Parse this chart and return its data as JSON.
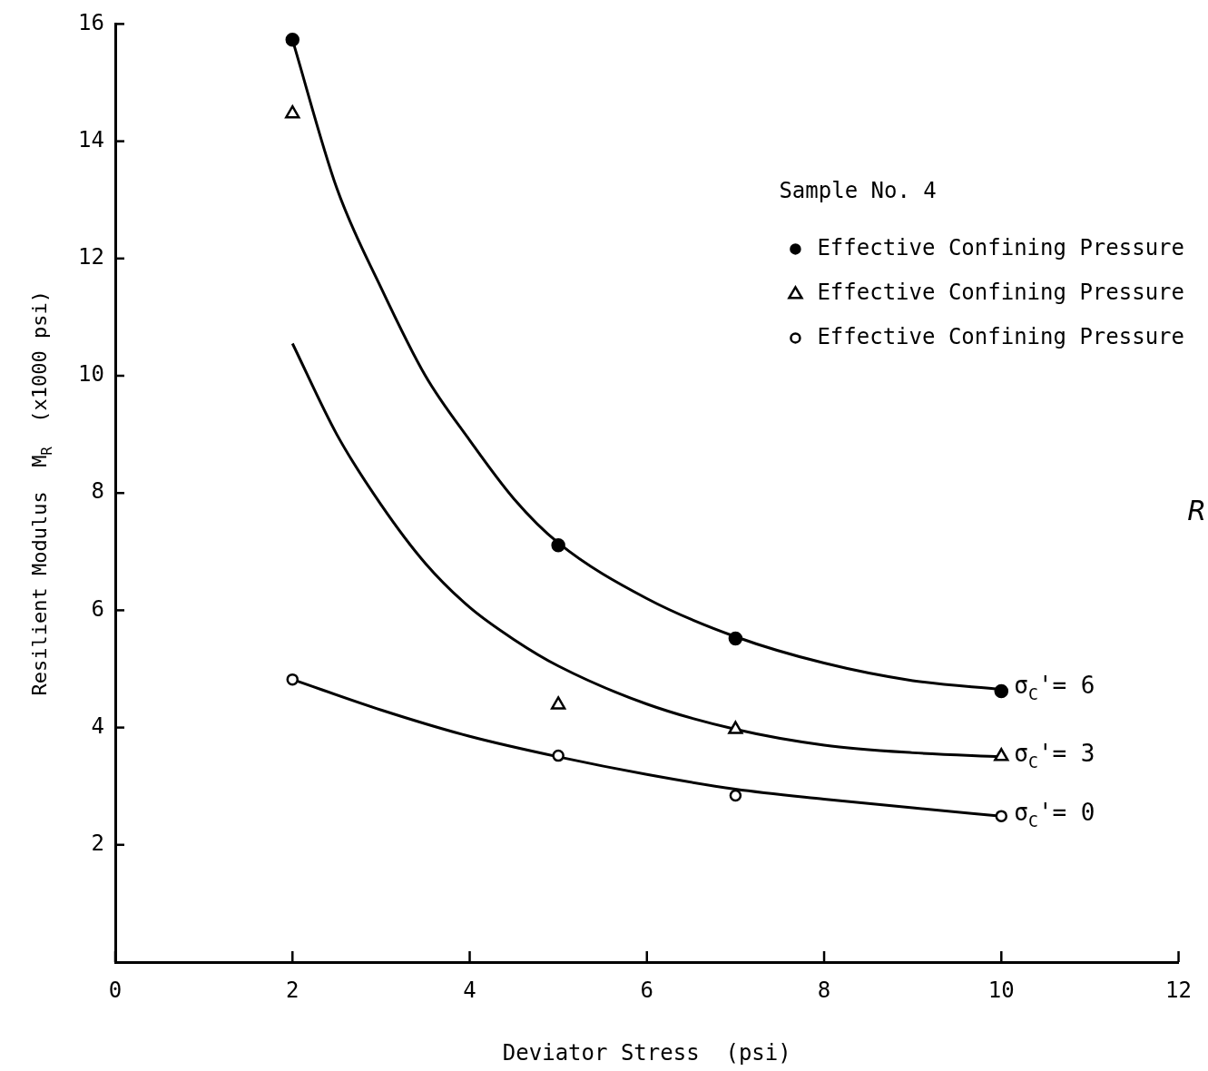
{
  "chart_data": {
    "type": "scatter",
    "xlabel": "Deviator Stress  (psi)",
    "ylabel": "Resilient Modulus  M$_{R}$  (x1000 psi)",
    "legend_title": "Sample No. 4",
    "legend": "top right",
    "grid": false,
    "xlim": [
      0,
      12
    ],
    "xticks": [
      0,
      2,
      4,
      6,
      8,
      10,
      12
    ],
    "ylim": [
      0,
      16
    ],
    "yticks": [
      2,
      4,
      6,
      8,
      10,
      12,
      14,
      16
    ],
    "series": [
      {
        "name": "Effective Confining Pressure",
        "color": "#000000",
        "marker": "circle",
        "x": [
          2,
          5,
          7,
          10
        ],
        "values": [
          15.73,
          7.11,
          5.52,
          4.62
        ]
      },
      {
        "name": "Effective Confining Pressure",
        "color": "#000000",
        "marker": "triangle",
        "x": [
          2,
          5,
          7,
          10
        ],
        "values": [
          14.47,
          4.39,
          3.97,
          3.51
        ]
      },
      {
        "name": "Effective Confining Pressure",
        "color": "#000000",
        "marker": "circle",
        "x": [
          2,
          5,
          7,
          10
        ],
        "values": [
          4.82,
          3.52,
          2.84,
          2.49
        ]
      },
      {
        "type": "line",
        "name": "σ$_{C}$'= 6",
        "color": "#000000",
        "marker": "none",
        "x": [
          2,
          2.5,
          3,
          3.5,
          4,
          4.5,
          5,
          6,
          7,
          8,
          9,
          10
        ],
        "values": [
          15.73,
          13.2,
          11.5,
          10.0,
          8.9,
          7.9,
          7.15,
          6.2,
          5.55,
          5.1,
          4.8,
          4.65
        ]
      },
      {
        "type": "line",
        "name": "σ$_{C}$'= 3",
        "color": "#000000",
        "marker": "none",
        "x": [
          2,
          2.5,
          3,
          3.5,
          4,
          4.5,
          5,
          6,
          7,
          8,
          9,
          10
        ],
        "values": [
          10.55,
          9.0,
          7.8,
          6.8,
          6.05,
          5.5,
          5.05,
          4.4,
          3.97,
          3.7,
          3.57,
          3.5
        ]
      },
      {
        "type": "line",
        "name": "σ$_{C}$'= 0",
        "color": "#000000",
        "marker": "none",
        "x": [
          2,
          3,
          4,
          5,
          6,
          7,
          8,
          9,
          10
        ],
        "values": [
          4.82,
          4.3,
          3.85,
          3.5,
          3.2,
          2.95,
          2.78,
          2.63,
          2.49
        ]
      }
    ],
    "annotations": [
      "R"
    ]
  }
}
